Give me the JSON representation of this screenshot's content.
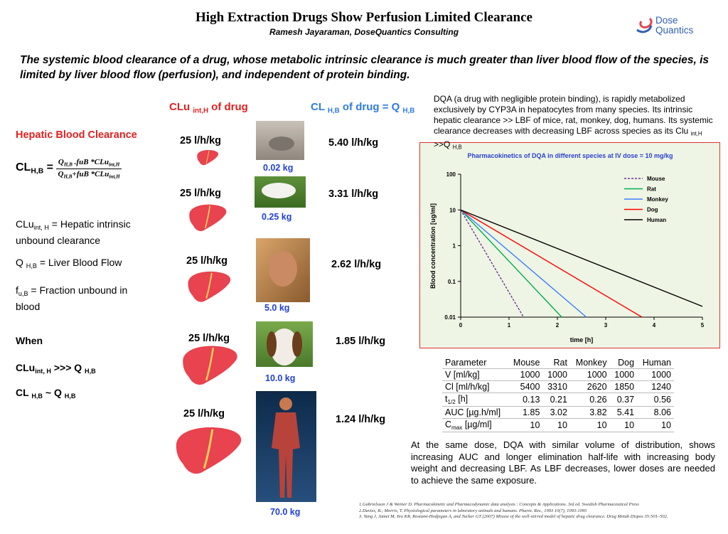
{
  "header": {
    "title": "High Extraction Drugs Show Perfusion Limited Clearance",
    "subtitle": "Ramesh Jayaraman, DoseQuantics Consulting",
    "logo": [
      "Dose",
      "Quantics"
    ]
  },
  "intro": "The systemic blood clearance of a drug, whose metabolic intrinsic clearance is much greater than liver blood flow of the species, is limited by liver blood flow (perfusion), and independent of protein binding.",
  "columns": {
    "intrinsic": [
      "CLu ",
      "int,H",
      " of drug"
    ],
    "blood": [
      "CL ",
      "H,B",
      " of drug = Q ",
      "H,B"
    ]
  },
  "left": {
    "heading": "Hepatic Blood Clearance",
    "formula": {
      "lhs": [
        "CL",
        "H,B",
        " ="
      ],
      "numerator": [
        "Q",
        "H,B",
        " .fuB *CLu",
        "int,H"
      ],
      "denominator": [
        "Q",
        "H,B",
        "+fuB *CLu",
        "int,H"
      ]
    },
    "definitions": [
      [
        "CLu",
        "int, H",
        " = Hepatic intrinsic unbound clearance"
      ],
      [
        "Q ",
        "H,B",
        " = Liver Blood Flow"
      ],
      [
        "f",
        "u,B",
        " = Fraction unbound in blood"
      ]
    ],
    "when": "When",
    "conditions": [
      [
        "CLu",
        "int, H",
        " >>> Q ",
        "H,B"
      ],
      [
        "CL ",
        "H,B",
        " ~ Q ",
        "H,B"
      ]
    ]
  },
  "species": [
    {
      "intrinsic": "25 l/h/kg",
      "weight": "0.02 kg",
      "clearance": "5.40 l/h/kg"
    },
    {
      "intrinsic": "25 l/h/kg",
      "weight": "0.25 kg",
      "clearance": "3.31 l/h/kg"
    },
    {
      "intrinsic": "25 l/h/kg",
      "weight": "5.0 kg",
      "clearance": "2.62 l/h/kg"
    },
    {
      "intrinsic": "25 l/h/kg",
      "weight": "10.0  kg",
      "clearance": "1.85 l/h/kg"
    },
    {
      "intrinsic": "25 l/h/kg",
      "weight": "70.0 kg",
      "clearance": "1.24 l/h/kg"
    }
  ],
  "description": [
    "DQA (a drug with negligible protein binding), is rapidly metabolized exclusively by CYP3A in hepatocytes from many species. Its intrinsic hepatic clearance >> LBF of mice, rat, monkey, dog, humans. Its systemic clearance decreases with decreasing LBF across species as its Clu ",
    "int,H",
    " >>Q ",
    "H,B"
  ],
  "chart_data": {
    "type": "line",
    "title": "Pharmacokinetics of DQA in different species at IV dose = 10 mg/kg",
    "xlabel": "time [h]",
    "ylabel": "Blood concentration [ug/ml]",
    "xlim": [
      0,
      5
    ],
    "xticks": [
      0,
      1,
      2,
      3,
      4,
      5
    ],
    "ylim": [
      0.01,
      100
    ],
    "yticks": [
      0.01,
      0.1,
      1,
      10,
      100
    ],
    "log_y": true,
    "grid": false,
    "legend": "upper right",
    "series": [
      {
        "name": "Mouse",
        "color": "#7030a0",
        "dashed": true,
        "x": [
          0,
          1.3
        ],
        "values": [
          10,
          0.01
        ]
      },
      {
        "name": "Rat",
        "color": "#00b050",
        "x": [
          0,
          2.09
        ],
        "values": [
          10,
          0.01
        ]
      },
      {
        "name": "Monkey",
        "color": "#3d7eff",
        "x": [
          0,
          2.6
        ],
        "values": [
          10,
          0.01
        ]
      },
      {
        "name": "Dog",
        "color": "#ff0000",
        "x": [
          0,
          3.75
        ],
        "values": [
          10,
          0.01
        ]
      },
      {
        "name": "Human",
        "color": "#000000",
        "x": [
          0,
          5
        ],
        "values": [
          10,
          0.02
        ]
      }
    ]
  },
  "table": {
    "header": [
      "Parameter",
      "Mouse",
      "Rat",
      "Monkey",
      "Dog",
      "Human"
    ],
    "rows": [
      [
        [
          "V [ml/kg]"
        ],
        "1000",
        "1000",
        "1000",
        "1000",
        "1000"
      ],
      [
        [
          "Cl  [ml/h/kg]"
        ],
        "5400",
        "3310",
        "2620",
        "1850",
        "1240"
      ],
      [
        [
          "t",
          "1/2",
          " [h]"
        ],
        "0.13",
        "0.21",
        "0.26",
        "0.37",
        "0.56"
      ],
      [
        [
          "AUC [µg.h/ml]"
        ],
        "1.85",
        "3.02",
        "3.82",
        "5.41",
        "8.06"
      ],
      [
        [
          "C",
          "max",
          " [µg/ml]"
        ],
        "10",
        "10",
        "10",
        "10",
        "10"
      ]
    ]
  },
  "conclusion": "At the same dose, DQA with similar volume of distribution, shows increasing AUC and longer elimination half-life with increasing body weight and decreasing LBF.  As LBF decreases, lower doses are needed to achieve the same exposure.",
  "references": [
    "1.Gabrielsson J & Weiner D. Pharmacokinetic and Pharmacodynamic data analysis : Concepts & Applications. 3rd ed. Swedish Pharmaceutical Press",
    "2.Davies, B.; Morris, T. Physiological parameters in laboratory animals and humans. Pharm. Res., 1993 10(7), 1093-1095",
    "3. Yang J, Jamei M, Yeo KR, Rostami-Hodjegan A, and Tucker GT (2007) Misuse of the well-stirred model of hepatic drug clearance. Drug Metab Dispos 35:501–502."
  ]
}
